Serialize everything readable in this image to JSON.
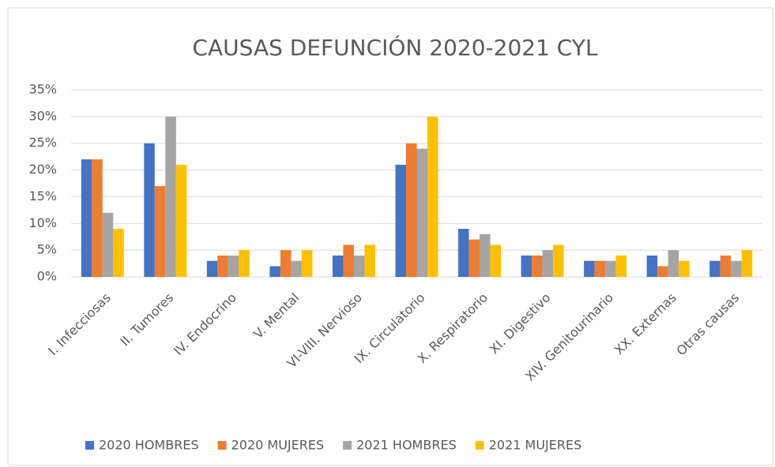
{
  "chart_data": {
    "type": "bar",
    "title": "CAUSAS DEFUNCIÓN 2020-2021 CYL",
    "categories": [
      "I. Infecciosas",
      "II. Tumores",
      "IV. Endocrino",
      "V. Mental",
      "VI-VIII. Nervioso",
      "IX. Circulatorio",
      "X. Respiratorio",
      "XI. Digestivo",
      "XIV. Genitourinario",
      "XX. Externas",
      "Otras causas"
    ],
    "series": [
      {
        "name": "2020 HOMBRES",
        "color": "#4472c4",
        "values": [
          22,
          25,
          3,
          2,
          4,
          21,
          9,
          4,
          3,
          4,
          3
        ]
      },
      {
        "name": "2020 MUJERES",
        "color": "#ed7d31",
        "values": [
          22,
          17,
          4,
          5,
          6,
          25,
          7,
          4,
          3,
          2,
          4
        ]
      },
      {
        "name": "2021 HOMBRES",
        "color": "#a5a5a5",
        "values": [
          12,
          30,
          4,
          3,
          4,
          24,
          8,
          5,
          3,
          5,
          3
        ]
      },
      {
        "name": "2021 MUJERES",
        "color": "#ffc000",
        "values": [
          9,
          21,
          5,
          5,
          6,
          30,
          6,
          6,
          4,
          3,
          5
        ]
      }
    ],
    "ylim": [
      0,
      35
    ],
    "yticks": [
      {
        "value": 0,
        "label": "0%"
      },
      {
        "value": 5,
        "label": "5%"
      },
      {
        "value": 10,
        "label": "10%"
      },
      {
        "value": 15,
        "label": "15%"
      },
      {
        "value": 20,
        "label": "20%"
      },
      {
        "value": 25,
        "label": "25%"
      },
      {
        "value": 30,
        "label": "30%"
      },
      {
        "value": 35,
        "label": "35%"
      }
    ],
    "grid": true,
    "legend": "bottom"
  }
}
